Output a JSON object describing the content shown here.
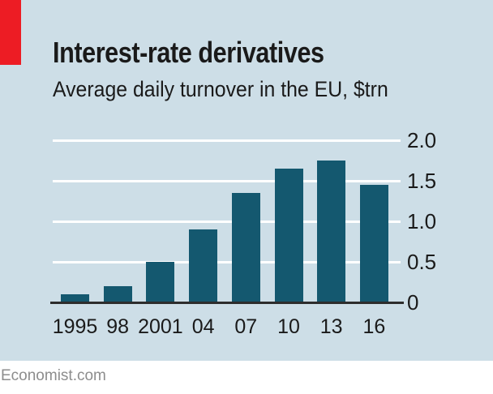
{
  "header": {
    "title": "Interest-rate derivatives",
    "subtitle": "Average daily turnover in the EU, $trn"
  },
  "footer": {
    "source": "Economist.com"
  },
  "colors": {
    "background": "#cddee7",
    "brand_red": "#ed1c24",
    "bar": "#14586f",
    "gridline": "#ffffff",
    "axis_line": "#2d2d2d",
    "text": "#1a1a1a",
    "footer_text": "#8d8d8d"
  },
  "chart_data": {
    "type": "bar",
    "title": "Interest-rate derivatives",
    "subtitle": "Average daily turnover in the EU, $trn",
    "categories": [
      "1995",
      "98",
      "2001",
      "04",
      "07",
      "10",
      "13",
      "16"
    ],
    "values": [
      0.1,
      0.2,
      0.5,
      0.9,
      1.35,
      1.65,
      1.75,
      1.45
    ],
    "xlabel": "",
    "ylabel": "Average daily turnover in the EU, $trn",
    "ylim": [
      0,
      2.0
    ],
    "yticks": [
      0,
      0.5,
      1.0,
      1.5,
      2.0
    ],
    "ytick_labels": [
      "0",
      "0.5",
      "1.0",
      "1.5",
      "2.0"
    ],
    "ytick_side": "right",
    "grid": true,
    "legend": false
  }
}
